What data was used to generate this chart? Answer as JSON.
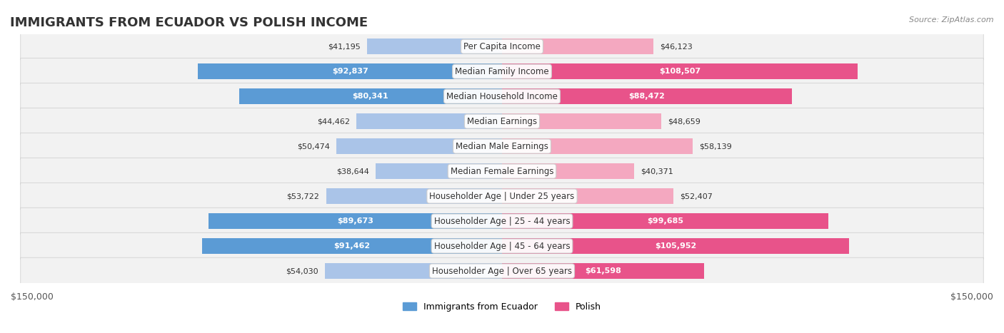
{
  "title": "IMMIGRANTS FROM ECUADOR VS POLISH INCOME",
  "source": "Source: ZipAtlas.com",
  "categories": [
    "Per Capita Income",
    "Median Family Income",
    "Median Household Income",
    "Median Earnings",
    "Median Male Earnings",
    "Median Female Earnings",
    "Householder Age | Under 25 years",
    "Householder Age | 25 - 44 years",
    "Householder Age | 45 - 64 years",
    "Householder Age | Over 65 years"
  ],
  "ecuador_values": [
    41195,
    92837,
    80341,
    44462,
    50474,
    38644,
    53722,
    89673,
    91462,
    54030
  ],
  "polish_values": [
    46123,
    108507,
    88472,
    48659,
    58139,
    40371,
    52407,
    99685,
    105952,
    61598
  ],
  "ecuador_color_light": "#aac4e8",
  "ecuador_color_dark": "#5b9bd5",
  "polish_color_light": "#f4a8c0",
  "polish_color_dark": "#e8538a",
  "max_value": 150000,
  "background_color": "#f5f5f5",
  "row_bg_color": "#f0f0f0",
  "title_fontsize": 13,
  "label_fontsize": 8.5,
  "value_fontsize": 8,
  "legend_ecuador": "Immigrants from Ecuador",
  "legend_polish": "Polish",
  "xlabel_left": "$150,000",
  "xlabel_right": "$150,000"
}
